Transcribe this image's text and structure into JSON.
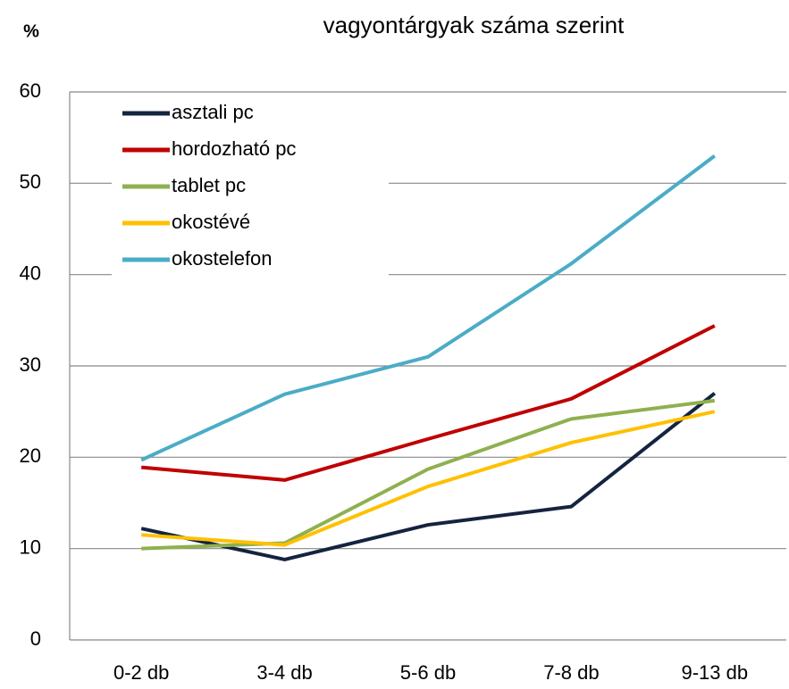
{
  "chart_data": {
    "type": "line",
    "title": "vagyontárgyak száma szerint",
    "y_label": "%",
    "categories": [
      "0-2 db",
      "3-4 db",
      "5-6 db",
      "7-8 db",
      "9-13 db"
    ],
    "series": [
      {
        "name": "asztali pc",
        "color": "#14243f",
        "values": [
          12.2,
          8.8,
          12.6,
          14.6,
          27
        ]
      },
      {
        "name": "hordozható pc",
        "color": "#c00000",
        "values": [
          18.9,
          17.5,
          22,
          26.4,
          34.4
        ]
      },
      {
        "name": "tablet pc",
        "color": "#8fb04f",
        "values": [
          10,
          10.6,
          18.7,
          24.2,
          26.2
        ]
      },
      {
        "name": "okostévé",
        "color": "#ffc000",
        "values": [
          11.5,
          10.4,
          16.8,
          21.6,
          25
        ]
      },
      {
        "name": "okostelefon",
        "color": "#4bacc6",
        "values": [
          19.7,
          26.9,
          31,
          41.2,
          53
        ]
      }
    ],
    "ylim": [
      0,
      60
    ],
    "yticks": [
      0,
      10,
      20,
      30,
      40,
      50,
      60
    ],
    "grid": true,
    "legend": "upper left"
  }
}
